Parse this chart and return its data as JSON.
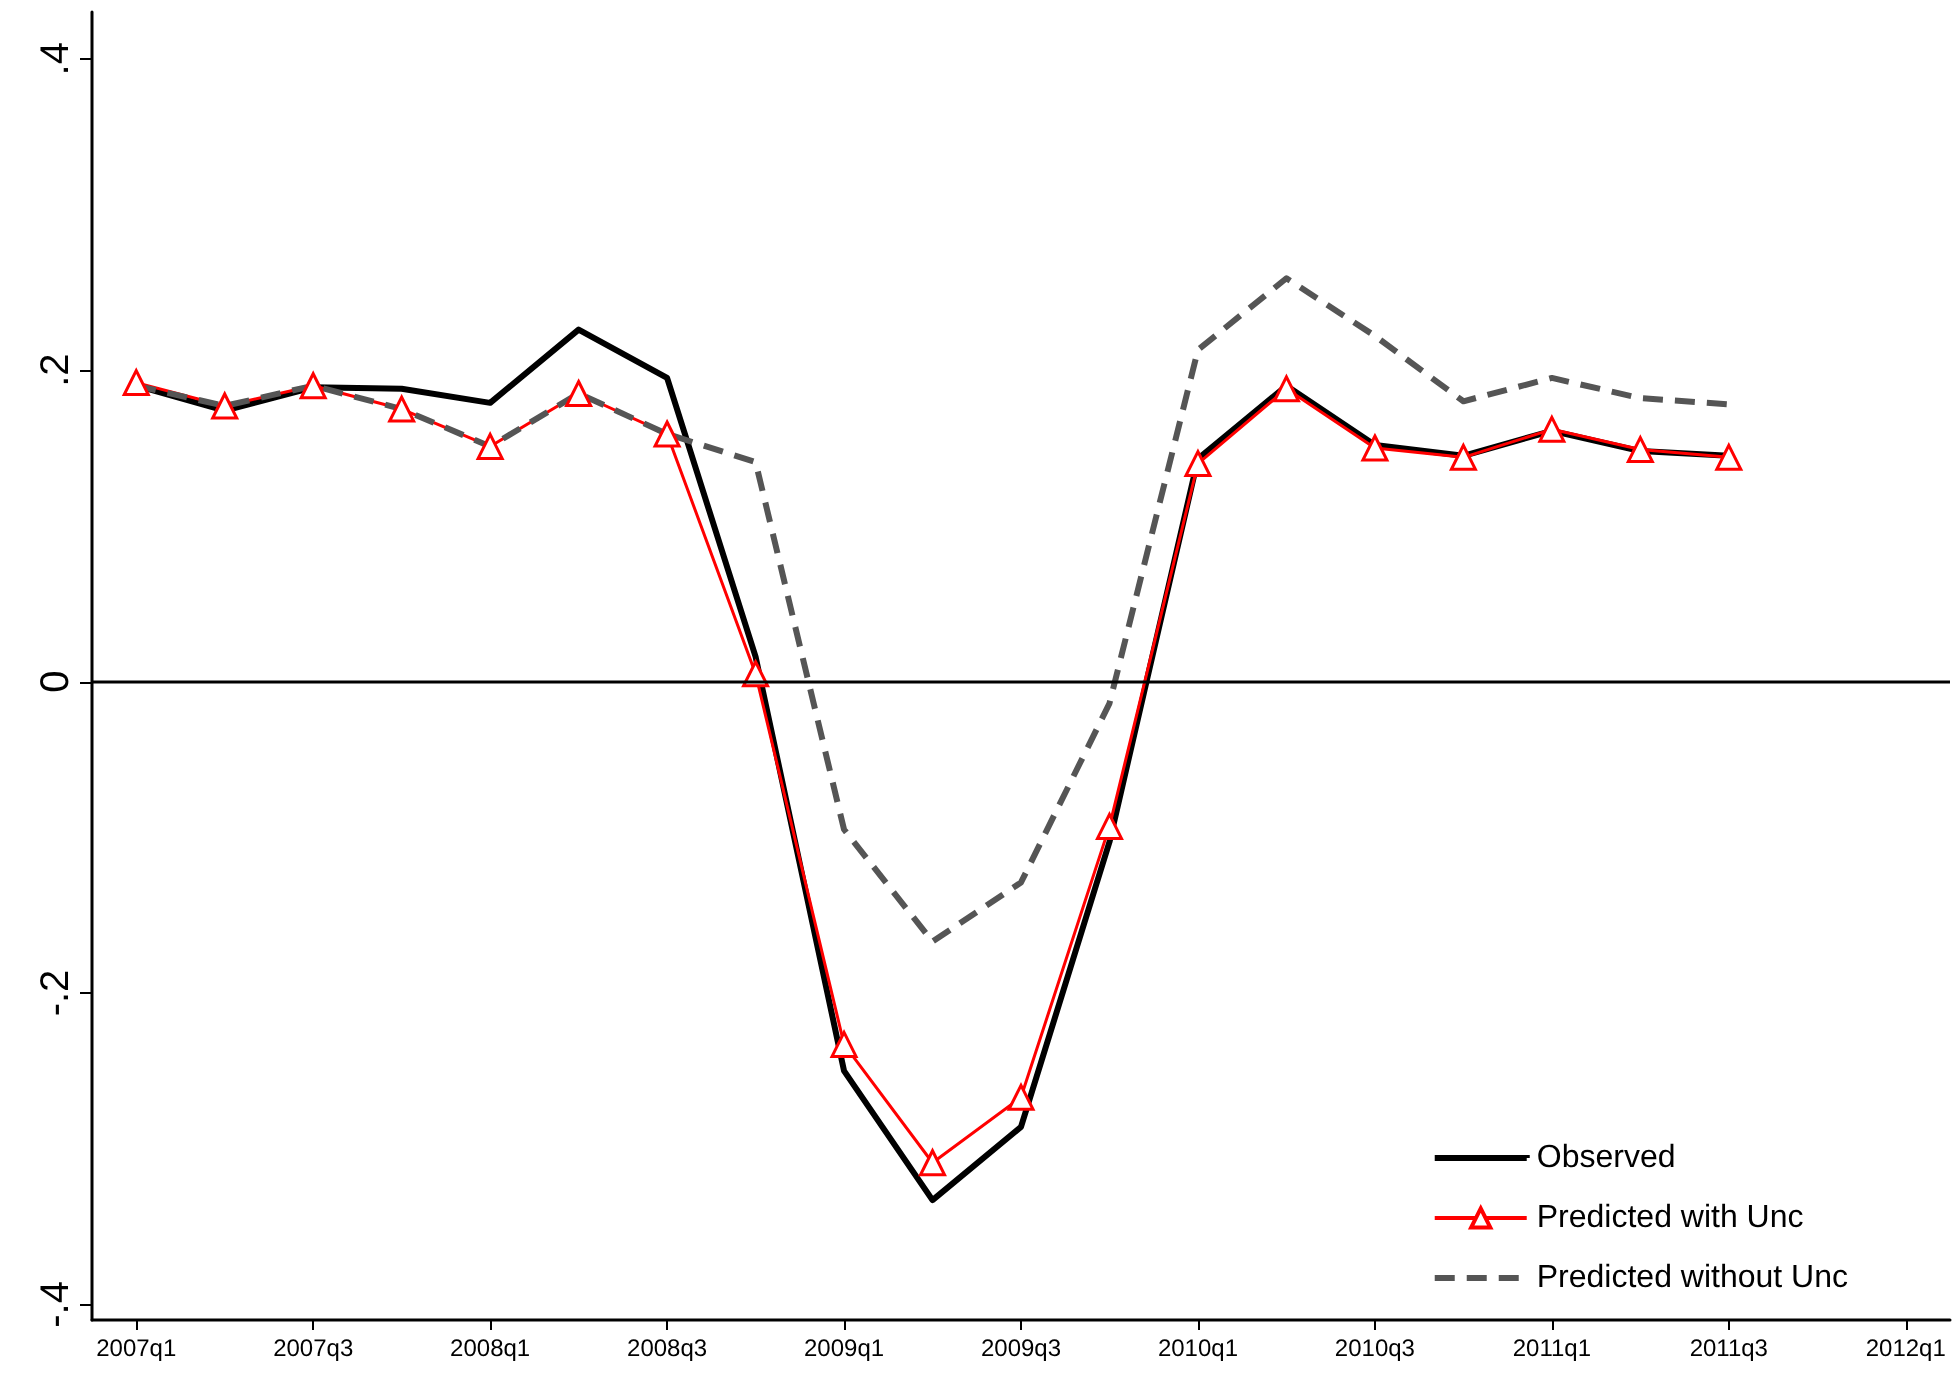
{
  "chart_data": {
    "type": "line",
    "categories": [
      "2007q1",
      null,
      "2007q3",
      null,
      "2008q1",
      null,
      "2008q3",
      null,
      "2009q1",
      null,
      "2009q3",
      null,
      "2010q1",
      null,
      "2010q3",
      null,
      "2011q1",
      null,
      "2011q3",
      null,
      "2012q1"
    ],
    "series": [
      {
        "name": "Observed",
        "color": "#000000",
        "line_style": "solid",
        "marker": "none",
        "values": [
          0.19,
          0.174,
          0.189,
          0.188,
          0.179,
          0.226,
          0.195,
          0.016,
          -0.25,
          -0.333,
          -0.286,
          -0.103,
          0.143,
          0.19,
          0.152,
          0.145,
          0.161,
          0.148,
          0.145,
          null,
          null
        ]
      },
      {
        "name": "Predicted with Unc",
        "color": "#ff0000",
        "line_style": "solid",
        "marker": "triangle",
        "values": [
          0.192,
          0.177,
          0.19,
          0.175,
          0.151,
          0.185,
          0.159,
          0.005,
          -0.233,
          -0.309,
          -0.267,
          -0.093,
          0.14,
          0.188,
          0.15,
          0.144,
          0.162,
          0.149,
          0.144,
          null,
          null
        ]
      },
      {
        "name": "Predicted without Unc",
        "color": "#555555",
        "line_style": "dashed",
        "marker": "none",
        "values": [
          0.19,
          0.177,
          0.19,
          0.175,
          0.151,
          0.185,
          0.159,
          0.141,
          -0.095,
          -0.167,
          -0.129,
          -0.014,
          0.213,
          0.259,
          0.222,
          0.18,
          0.195,
          0.182,
          0.178,
          null,
          null
        ]
      }
    ],
    "ylim": [
      -0.41,
      0.43
    ],
    "yticks": [
      {
        "value": -0.4,
        "label": "-.4"
      },
      {
        "value": -0.2,
        "label": "-.2"
      },
      0,
      {
        "value": 0.2,
        "label": ".2"
      },
      {
        "value": 0.4,
        "label": ".4"
      }
    ],
    "ref_lines": [
      {
        "axis": "y",
        "value": 0,
        "color": "#000000",
        "line_style": "solid"
      }
    ],
    "grid": false,
    "legend": "bottom right"
  }
}
